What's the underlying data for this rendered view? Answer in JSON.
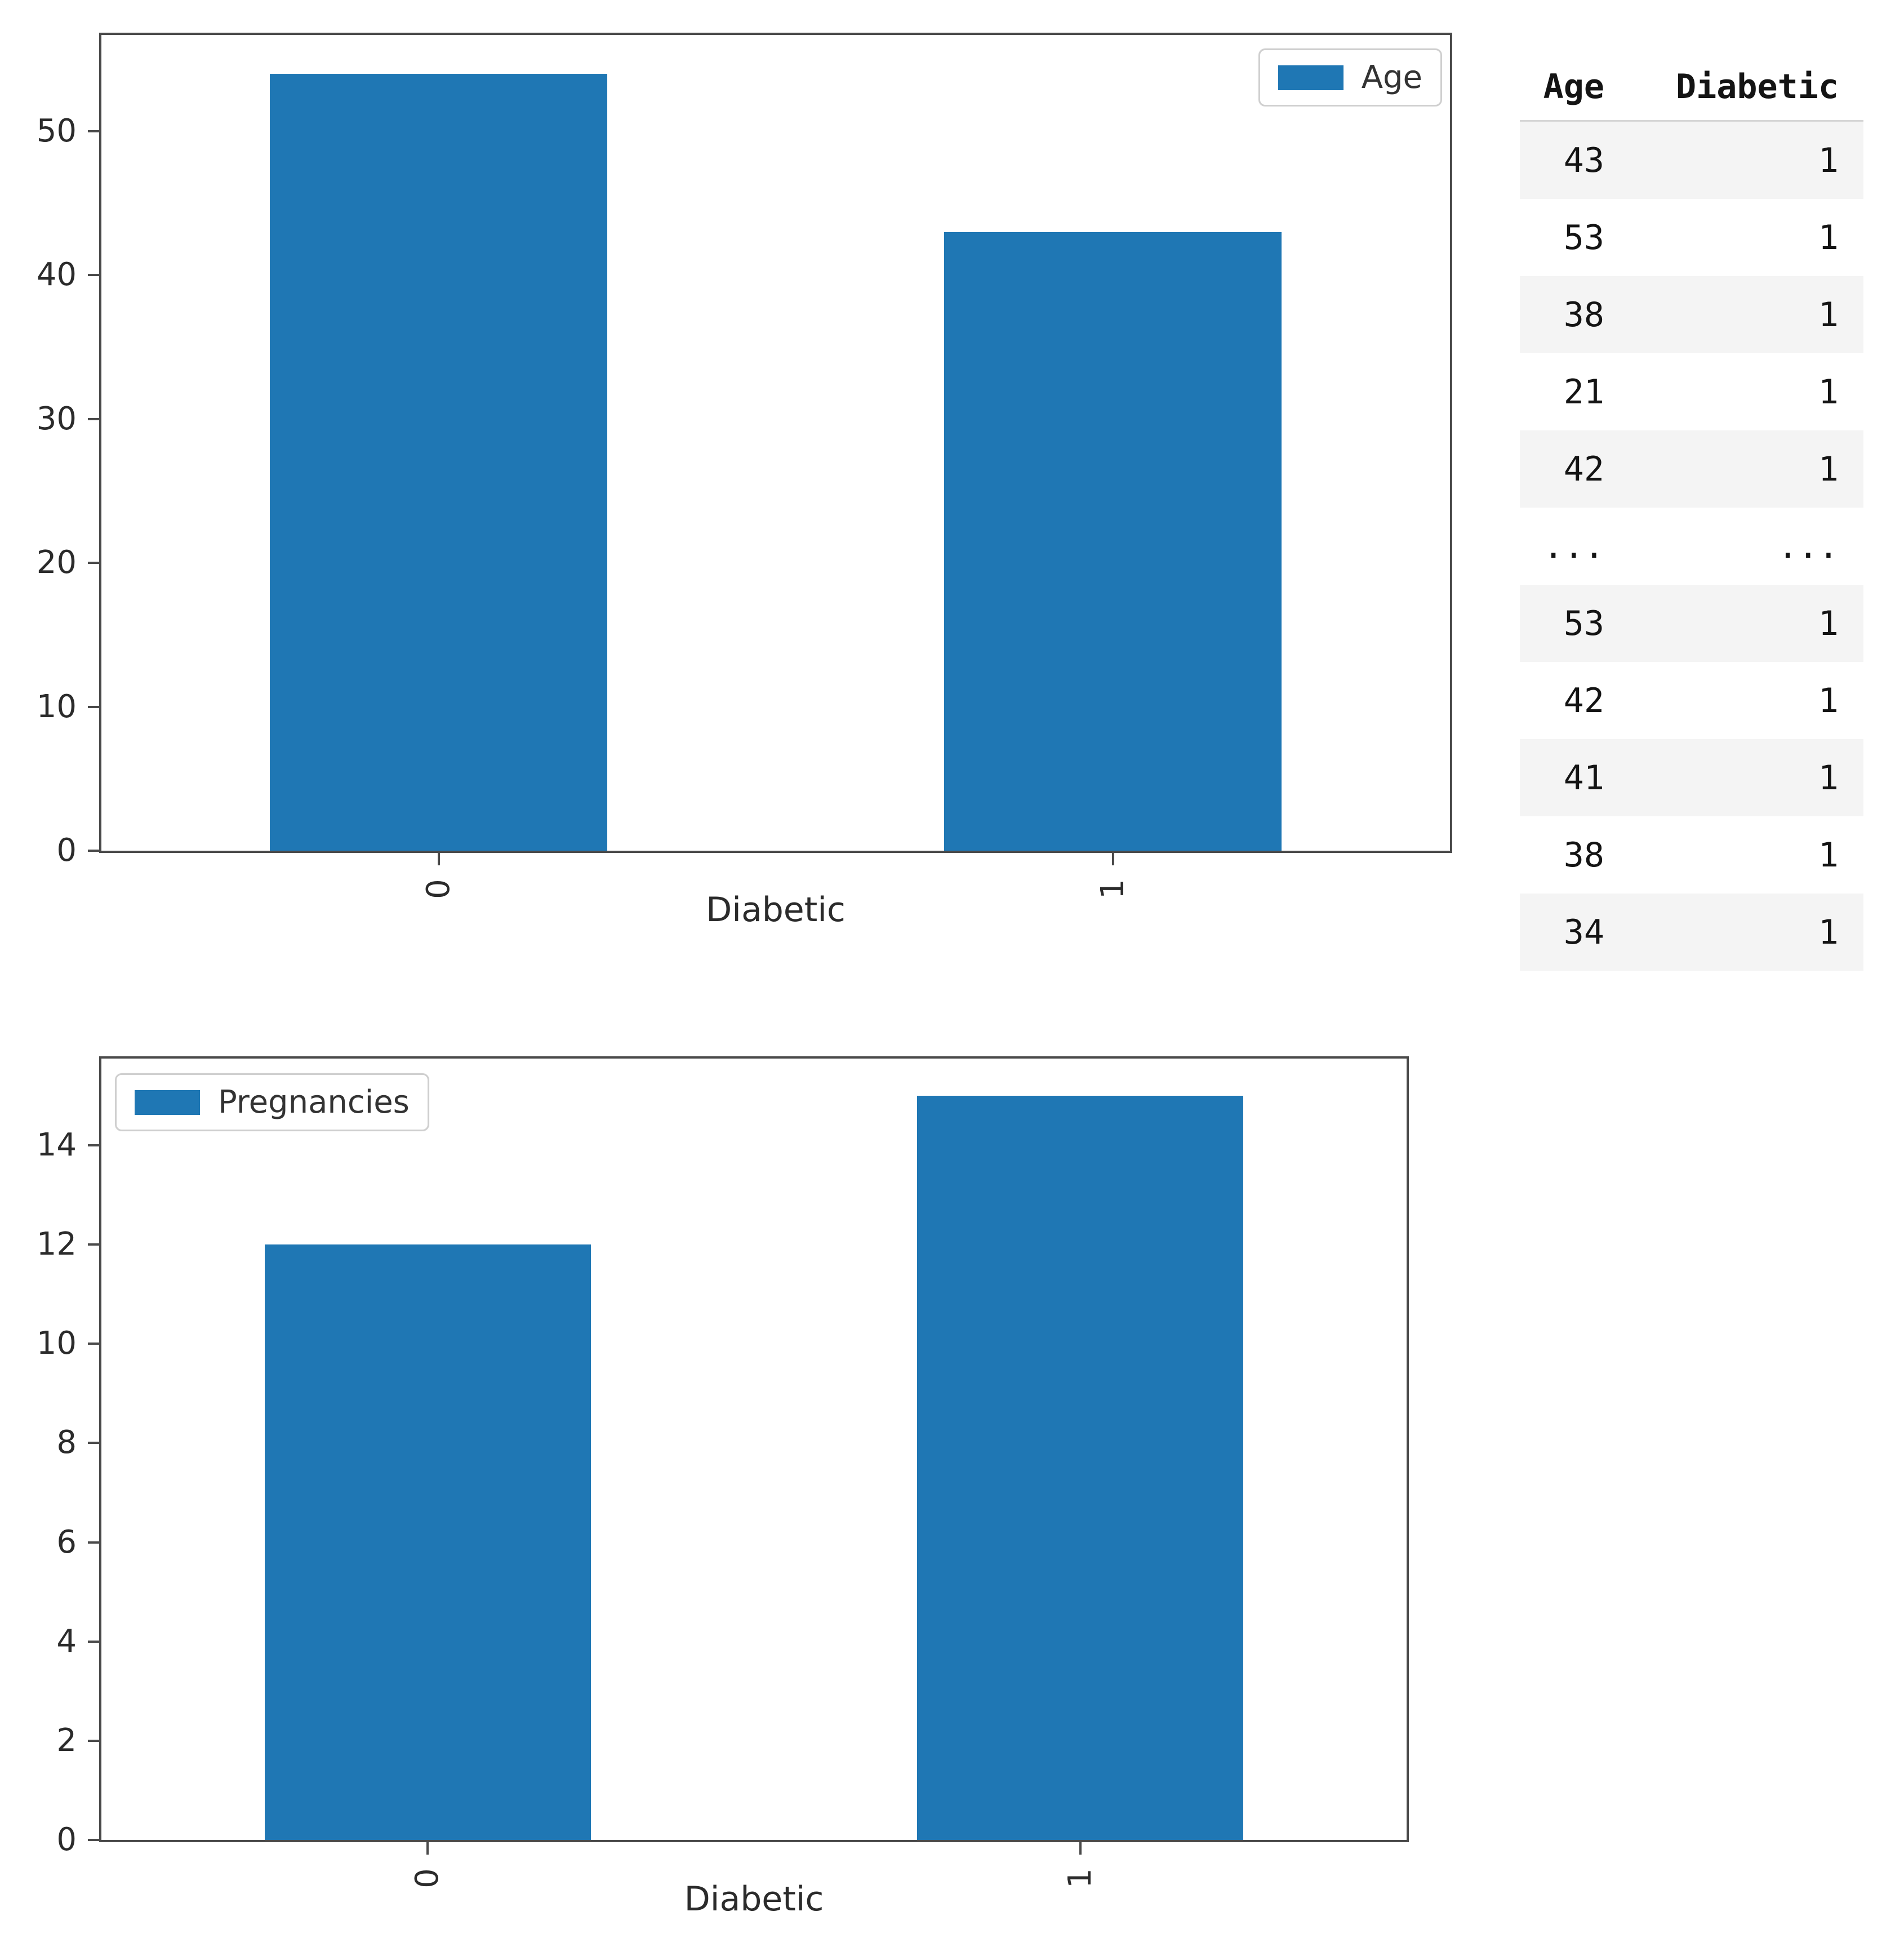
{
  "chart_data": [
    {
      "type": "bar",
      "series_label": "Age",
      "xlabel": "Diabetic",
      "categories": [
        "0",
        "1"
      ],
      "values": [
        54,
        43
      ],
      "yticks": [
        0,
        10,
        20,
        30,
        40,
        50
      ],
      "ylim": [
        0,
        56.7
      ],
      "bar_color": "#1f77b4",
      "legend_position": "upper right",
      "x_tick_rotation": 90,
      "grid": "off"
    },
    {
      "type": "bar",
      "series_label": "Pregnancies",
      "xlabel": "Diabetic",
      "categories": [
        "0",
        "1"
      ],
      "values": [
        12,
        15
      ],
      "yticks": [
        0,
        2,
        4,
        6,
        8,
        10,
        12,
        14
      ],
      "ylim": [
        0,
        15.75
      ],
      "bar_color": "#1f77b4",
      "legend_position": "upper left",
      "x_tick_rotation": 90,
      "grid": "off"
    }
  ],
  "table": {
    "columns": [
      "Age",
      "Diabetic"
    ],
    "rows": [
      [
        "43",
        "1"
      ],
      [
        "53",
        "1"
      ],
      [
        "38",
        "1"
      ],
      [
        "21",
        "1"
      ],
      [
        "42",
        "1"
      ],
      [
        "...",
        "..."
      ],
      [
        "53",
        "1"
      ],
      [
        "42",
        "1"
      ],
      [
        "41",
        "1"
      ],
      [
        "38",
        "1"
      ],
      [
        "34",
        "1"
      ]
    ]
  },
  "colors": {
    "bar": "#1f77b4",
    "spine": "#4a4a4a",
    "row_stripe": "#f4f4f4"
  }
}
